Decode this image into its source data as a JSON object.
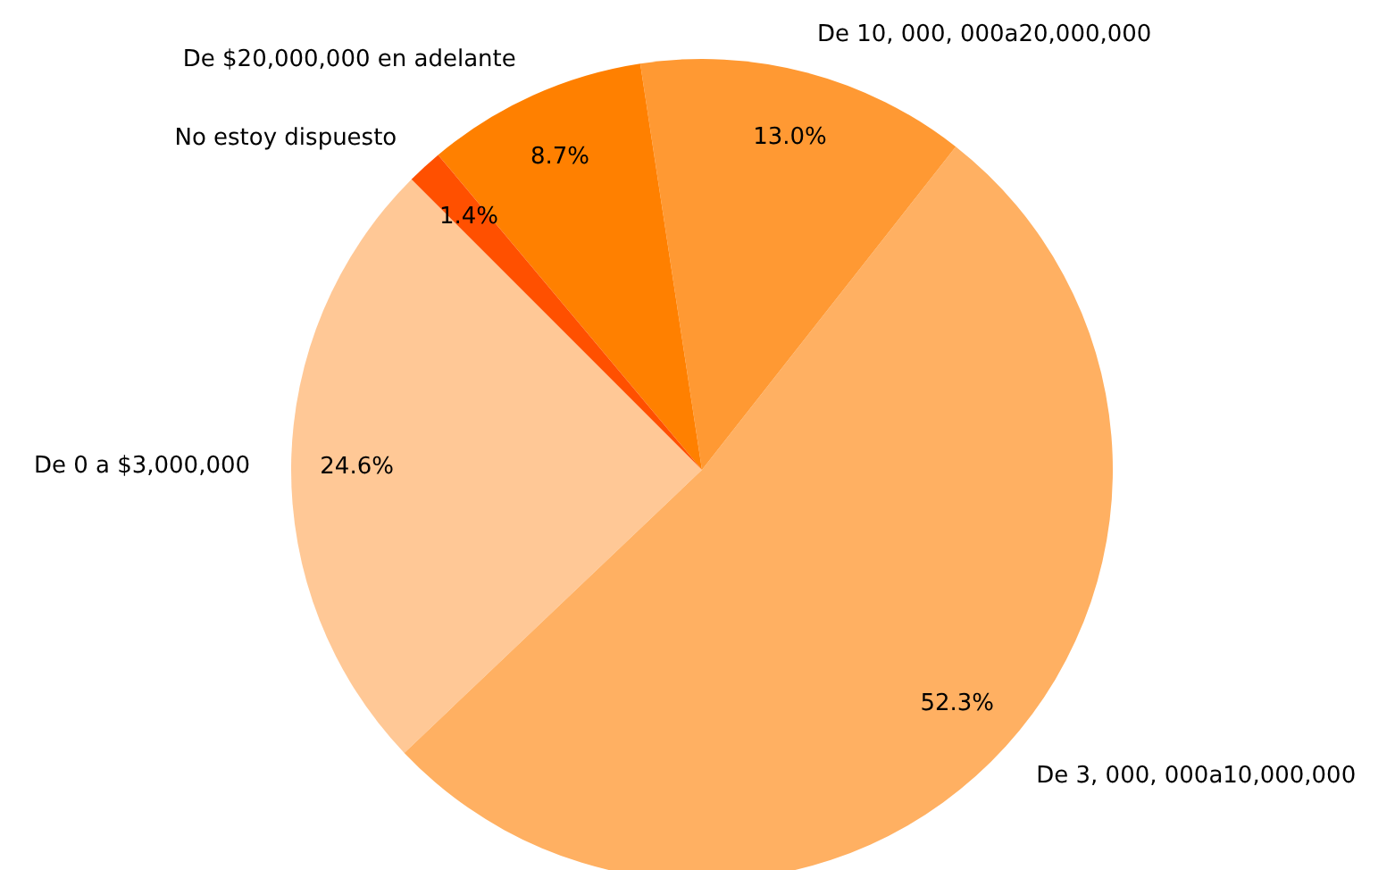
{
  "chart_data": {
    "type": "pie",
    "categories": [
      "De 0 a $3,000,000",
      "De 3, 000, 000a10,000,000",
      "De 10, 000, 000a20,000,000",
      "De $20,000,000 en adelante",
      "No estoy dispuesto"
    ],
    "values": [
      24.6,
      52.3,
      13.0,
      8.7,
      1.4
    ],
    "value_labels": [
      "24.6%",
      "52.3%",
      "13.0%",
      "8.7%",
      "1.4%"
    ],
    "colors": [
      "#ffc896",
      "#ffb062",
      "#ff9933",
      "#ff8000",
      "#ff5000"
    ]
  }
}
